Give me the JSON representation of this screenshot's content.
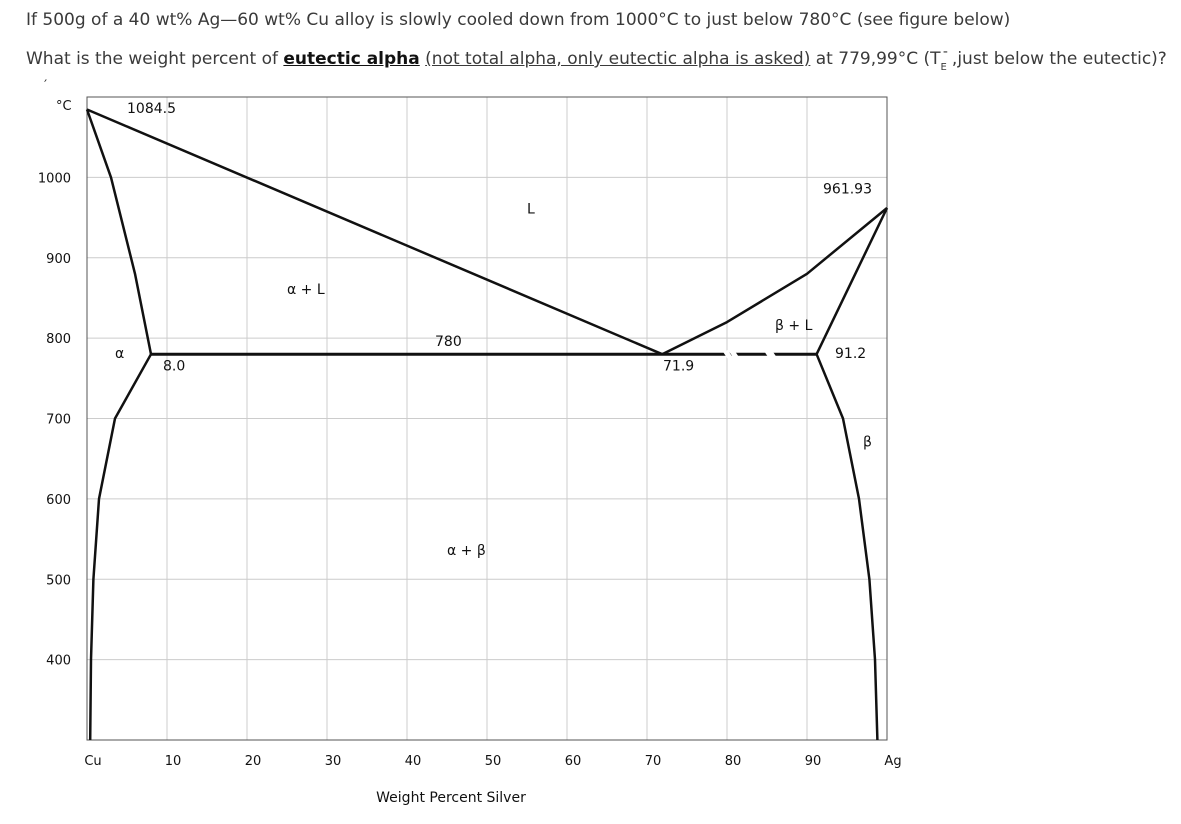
{
  "question": {
    "line1": "If 500g of a 40 wt% Ag—60 wt% Cu alloy is slowly cooled down from 1000°C to just below 780°C (see figure below)",
    "line2_a": "What is the weight percent of ",
    "line2_bold": "eutectic alpha",
    "line2_b": " ",
    "line2_note": "(not total alpha, only eutectic alpha is asked)",
    "line2_c": " at 779,99°C (T",
    "line2_sub": "E",
    "line2_tick": "-",
    "line2_d": ",just below the eutectic)?",
    "stray_mark": "′"
  },
  "chart_data": {
    "type": "phase-diagram",
    "title": "",
    "xlabel": "Weight Percent Silver",
    "ylabel": "°C",
    "xlim": [
      0,
      100
    ],
    "ylim": [
      300,
      1100
    ],
    "grid": true,
    "x_ticks": [
      {
        "value": 0,
        "label": "Cu"
      },
      {
        "value": 10,
        "label": "10"
      },
      {
        "value": 20,
        "label": "20"
      },
      {
        "value": 30,
        "label": "30"
      },
      {
        "value": 40,
        "label": "40"
      },
      {
        "value": 50,
        "label": "50"
      },
      {
        "value": 60,
        "label": "60"
      },
      {
        "value": 70,
        "label": "70"
      },
      {
        "value": 80,
        "label": "80"
      },
      {
        "value": 90,
        "label": "90"
      },
      {
        "value": 100,
        "label": "Ag"
      }
    ],
    "y_ticks": [
      {
        "value": 1000,
        "label": "1000"
      },
      {
        "value": 900,
        "label": "900"
      },
      {
        "value": 800,
        "label": "800"
      },
      {
        "value": 700,
        "label": "700"
      },
      {
        "value": 600,
        "label": "600"
      },
      {
        "value": 500,
        "label": "500"
      },
      {
        "value": 400,
        "label": "400"
      }
    ],
    "curves": [
      {
        "name": "liquidus-left",
        "points": [
          [
            0,
            1084.5
          ],
          [
            71.9,
            780
          ]
        ]
      },
      {
        "name": "liquidus-right",
        "points": [
          [
            71.9,
            780
          ],
          [
            80,
            820
          ],
          [
            90,
            880
          ],
          [
            100,
            961.93
          ]
        ]
      },
      {
        "name": "solidus-alpha",
        "points": [
          [
            0,
            1084.5
          ],
          [
            3,
            1000
          ],
          [
            6,
            880
          ],
          [
            8.0,
            780
          ]
        ]
      },
      {
        "name": "solidus-beta",
        "points": [
          [
            100,
            961.93
          ],
          [
            91.2,
            780
          ]
        ]
      },
      {
        "name": "solvus-alpha",
        "points": [
          [
            8.0,
            780
          ],
          [
            3.5,
            700
          ],
          [
            1.5,
            600
          ],
          [
            0.8,
            500
          ],
          [
            0.5,
            400
          ],
          [
            0.4,
            300
          ]
        ]
      },
      {
        "name": "solvus-beta",
        "points": [
          [
            91.2,
            780
          ],
          [
            94.5,
            700
          ],
          [
            96.5,
            600
          ],
          [
            97.8,
            500
          ],
          [
            98.5,
            400
          ],
          [
            98.8,
            300
          ]
        ]
      },
      {
        "name": "eutectic",
        "points": [
          [
            8.0,
            780
          ],
          [
            91.2,
            780
          ]
        ]
      }
    ],
    "annotations": [
      {
        "text": "1084.5",
        "x": 5,
        "y": 1080
      },
      {
        "text": "961.93",
        "x": 92,
        "y": 980
      },
      {
        "text": "L",
        "x": 55,
        "y": 955
      },
      {
        "text": "α + L",
        "x": 25,
        "y": 855
      },
      {
        "text": "780",
        "x": 43.5,
        "y": 790
      },
      {
        "text": "β + L",
        "x": 86,
        "y": 810
      },
      {
        "text": "α",
        "x": 3.5,
        "y": 775
      },
      {
        "text": "8.0",
        "x": 9.5,
        "y": 760
      },
      {
        "text": "71.9",
        "x": 72,
        "y": 760
      },
      {
        "text": "91.2",
        "x": 93.5,
        "y": 775
      },
      {
        "text": "β",
        "x": 97,
        "y": 665
      },
      {
        "text": "α + β",
        "x": 45,
        "y": 530
      }
    ]
  }
}
